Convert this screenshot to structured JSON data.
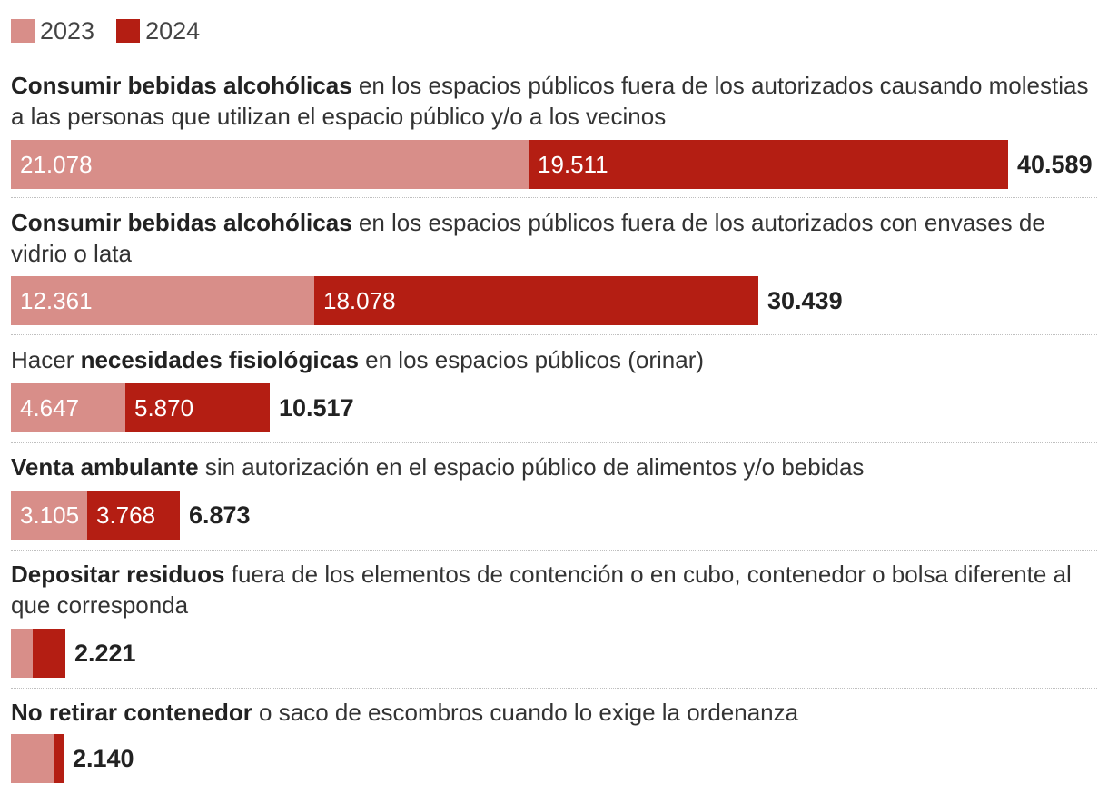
{
  "colors": {
    "y2023": "#d88e89",
    "y2024": "#b41e13"
  },
  "legend": [
    {
      "label": "2023",
      "color": "#d88e89"
    },
    {
      "label": "2024",
      "color": "#b41e13"
    }
  ],
  "chart_data": {
    "type": "bar",
    "orientation": "horizontal",
    "stacked": true,
    "title": "",
    "xlim": [
      0,
      40589
    ],
    "series": [
      {
        "name": "2023",
        "values": [
          21078,
          12361,
          4647,
          3105,
          null,
          null
        ]
      },
      {
        "name": "2024",
        "values": [
          19511,
          18078,
          5870,
          3768,
          null,
          null
        ]
      }
    ],
    "rows": [
      {
        "bold": "Consumir bebidas alcohólicas",
        "rest": " en los espacios públicos fuera de los autorizados causando molestias a las personas que utilizan el espacio público y/o a los vecinos",
        "v2023": 21078,
        "v2024": 19511,
        "label2023": "21.078",
        "label2024": "19.511",
        "total": "40.589"
      },
      {
        "bold": "Consumir bebidas alcohólicas",
        "rest": " en los espacios públicos fuera de los autorizados con envases de vidrio o lata",
        "v2023": 12361,
        "v2024": 18078,
        "label2023": "12.361",
        "label2024": "18.078",
        "total": "30.439"
      },
      {
        "pre": "Hacer ",
        "bold": "necesidades fisiológicas",
        "rest": " en los espacios públicos (orinar)",
        "v2023": 4647,
        "v2024": 5870,
        "label2023": "4.647",
        "label2024": "5.870",
        "total": "10.517"
      },
      {
        "bold": "Venta ambulante",
        "rest": " sin autorización en el espacio público de alimentos y/o bebidas",
        "v2023": 3105,
        "v2024": 3768,
        "label2023": "3.105",
        "label2024": "3.768",
        "total": "6.873"
      },
      {
        "bold": "Depositar residuos",
        "rest": " fuera de los elementos de contención o en cubo, contenedor o bolsa diferente al que corresponda",
        "v2023": 880,
        "v2024": 1341,
        "label2023": "",
        "label2024": "",
        "total": "2.221"
      },
      {
        "bold": "No retirar contenedor",
        "rest": " o saco de escombros cuando lo exige la ordenanza",
        "v2023": 1720,
        "v2024": 420,
        "label2023": "",
        "label2024": "",
        "total": "2.140"
      }
    ]
  }
}
